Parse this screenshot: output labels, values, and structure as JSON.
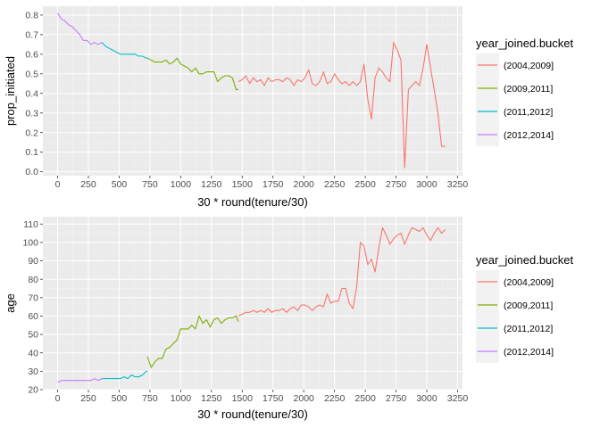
{
  "chart_data": [
    {
      "type": "line",
      "xlabel": "30 * round(tenure/30)",
      "ylabel": "prop_initiated",
      "xlim": [
        -120,
        3290
      ],
      "ylim": [
        -0.02,
        0.845
      ],
      "xticks": [
        0,
        250,
        500,
        750,
        1000,
        1250,
        1500,
        1750,
        2000,
        2250,
        2500,
        2750,
        3000,
        3250
      ],
      "yticks": [
        0.0,
        0.1,
        0.2,
        0.3,
        0.4,
        0.5,
        0.6,
        0.7,
        0.8
      ],
      "ytick_labels": [
        "0.0",
        "0.1",
        "0.2",
        "0.3",
        "0.4",
        "0.5",
        "0.6",
        "0.7",
        "0.8"
      ],
      "legend_title": "year_joined.bucket",
      "legend_position": "right",
      "grid": true,
      "series": [
        {
          "name": "(2004,2009]",
          "color": "#F8766D",
          "x": [
            1470,
            1500,
            1530,
            1560,
            1590,
            1620,
            1650,
            1680,
            1710,
            1740,
            1770,
            1800,
            1830,
            1860,
            1890,
            1920,
            1950,
            1980,
            2010,
            2040,
            2070,
            2100,
            2130,
            2160,
            2190,
            2220,
            2250,
            2280,
            2310,
            2340,
            2370,
            2400,
            2430,
            2460,
            2490,
            2520,
            2550,
            2580,
            2610,
            2640,
            2670,
            2700,
            2730,
            2760,
            2790,
            2820,
            2850,
            2880,
            2910,
            2940,
            2970,
            3000,
            3030,
            3060,
            3090,
            3120,
            3150
          ],
          "y": [
            0.46,
            0.47,
            0.49,
            0.45,
            0.48,
            0.46,
            0.47,
            0.44,
            0.48,
            0.46,
            0.47,
            0.47,
            0.46,
            0.48,
            0.47,
            0.44,
            0.47,
            0.46,
            0.48,
            0.52,
            0.45,
            0.44,
            0.46,
            0.51,
            0.45,
            0.46,
            0.5,
            0.47,
            0.45,
            0.46,
            0.44,
            0.46,
            0.44,
            0.46,
            0.55,
            0.37,
            0.27,
            0.48,
            0.53,
            0.51,
            0.48,
            0.46,
            0.66,
            0.62,
            0.57,
            0.02,
            0.42,
            0.44,
            0.46,
            0.44,
            0.53,
            0.65,
            0.53,
            0.42,
            0.3,
            0.13,
            0.13
          ]
        },
        {
          "name": "(2009,2011]",
          "color": "#7CAE00",
          "x": [
            730,
            760,
            790,
            820,
            850,
            880,
            910,
            940,
            970,
            1000,
            1030,
            1060,
            1090,
            1120,
            1150,
            1180,
            1210,
            1240,
            1270,
            1300,
            1330,
            1360,
            1390,
            1420,
            1450,
            1470
          ],
          "y": [
            0.58,
            0.57,
            0.56,
            0.56,
            0.56,
            0.57,
            0.55,
            0.56,
            0.58,
            0.55,
            0.54,
            0.53,
            0.51,
            0.53,
            0.5,
            0.5,
            0.51,
            0.51,
            0.51,
            0.46,
            0.48,
            0.49,
            0.49,
            0.48,
            0.42,
            0.42
          ]
        },
        {
          "name": "(2011,2012]",
          "color": "#00BFC4",
          "x": [
            360,
            390,
            420,
            450,
            480,
            510,
            540,
            570,
            600,
            630,
            660,
            690,
            720,
            730
          ],
          "y": [
            0.66,
            0.64,
            0.63,
            0.62,
            0.61,
            0.6,
            0.6,
            0.6,
            0.6,
            0.6,
            0.59,
            0.59,
            0.58,
            0.58
          ]
        },
        {
          "name": "(2012,2014]",
          "color": "#C77CFF",
          "x": [
            0,
            30,
            60,
            90,
            120,
            150,
            180,
            210,
            240,
            270,
            300,
            330,
            360
          ],
          "y": [
            0.81,
            0.78,
            0.77,
            0.75,
            0.74,
            0.72,
            0.7,
            0.67,
            0.67,
            0.65,
            0.66,
            0.65,
            0.66
          ]
        }
      ]
    },
    {
      "type": "line",
      "xlabel": "30 * round(tenure/30)",
      "ylabel": "age",
      "xlim": [
        -120,
        3290
      ],
      "ylim": [
        20,
        114
      ],
      "xticks": [
        0,
        250,
        500,
        750,
        1000,
        1250,
        1500,
        1750,
        2000,
        2250,
        2500,
        2750,
        3000,
        3250
      ],
      "yticks": [
        20,
        30,
        40,
        50,
        60,
        70,
        80,
        90,
        100,
        110
      ],
      "ytick_labels": [
        "20",
        "30",
        "40",
        "50",
        "60",
        "70",
        "80",
        "90",
        "100",
        "110"
      ],
      "legend_title": "year_joined.bucket",
      "legend_position": "right",
      "grid": true,
      "series": [
        {
          "name": "(2004,2009]",
          "color": "#F8766D",
          "x": [
            1470,
            1500,
            1530,
            1560,
            1590,
            1620,
            1650,
            1680,
            1710,
            1740,
            1770,
            1800,
            1830,
            1860,
            1890,
            1920,
            1950,
            1980,
            2010,
            2040,
            2070,
            2100,
            2130,
            2160,
            2190,
            2220,
            2250,
            2280,
            2310,
            2340,
            2370,
            2400,
            2430,
            2460,
            2490,
            2520,
            2550,
            2580,
            2610,
            2640,
            2670,
            2700,
            2730,
            2760,
            2790,
            2820,
            2850,
            2880,
            2910,
            2940,
            2970,
            3000,
            3030,
            3060,
            3090,
            3120,
            3150
          ],
          "y": [
            60,
            61,
            62,
            62,
            63,
            62,
            63,
            62,
            64,
            62,
            63,
            63,
            64,
            62,
            64,
            65,
            63,
            66,
            66,
            65,
            63,
            65,
            66,
            65,
            72,
            67,
            68,
            68,
            75,
            75,
            67,
            64,
            76,
            100,
            98,
            88,
            91,
            84,
            97,
            108,
            104,
            99,
            102,
            104,
            105,
            99,
            104,
            108,
            107,
            106,
            108,
            104,
            101,
            105,
            108,
            105,
            107
          ]
        },
        {
          "name": "(2009,2011]",
          "color": "#7CAE00",
          "x": [
            730,
            760,
            790,
            820,
            850,
            880,
            910,
            940,
            970,
            1000,
            1030,
            1060,
            1090,
            1120,
            1150,
            1180,
            1210,
            1240,
            1270,
            1300,
            1330,
            1360,
            1390,
            1420,
            1450,
            1470
          ],
          "y": [
            38,
            32,
            35,
            37,
            37,
            42,
            43,
            45,
            47,
            53,
            53,
            53,
            55,
            53,
            60,
            56,
            58,
            54,
            58,
            59,
            56,
            58,
            59,
            59,
            60,
            57
          ]
        },
        {
          "name": "(2011,2012]",
          "color": "#00BFC4",
          "x": [
            360,
            390,
            420,
            450,
            480,
            510,
            540,
            570,
            600,
            630,
            660,
            690,
            720,
            730
          ],
          "y": [
            26,
            26,
            26,
            26,
            26,
            26,
            27,
            26,
            28,
            27,
            27,
            28,
            30,
            30
          ]
        },
        {
          "name": "(2012,2014]",
          "color": "#C77CFF",
          "x": [
            0,
            30,
            60,
            90,
            120,
            150,
            180,
            210,
            240,
            270,
            300,
            330,
            360
          ],
          "y": [
            24,
            25,
            25,
            25,
            25,
            25,
            25,
            25,
            25,
            25,
            26,
            25,
            26
          ]
        }
      ]
    }
  ]
}
